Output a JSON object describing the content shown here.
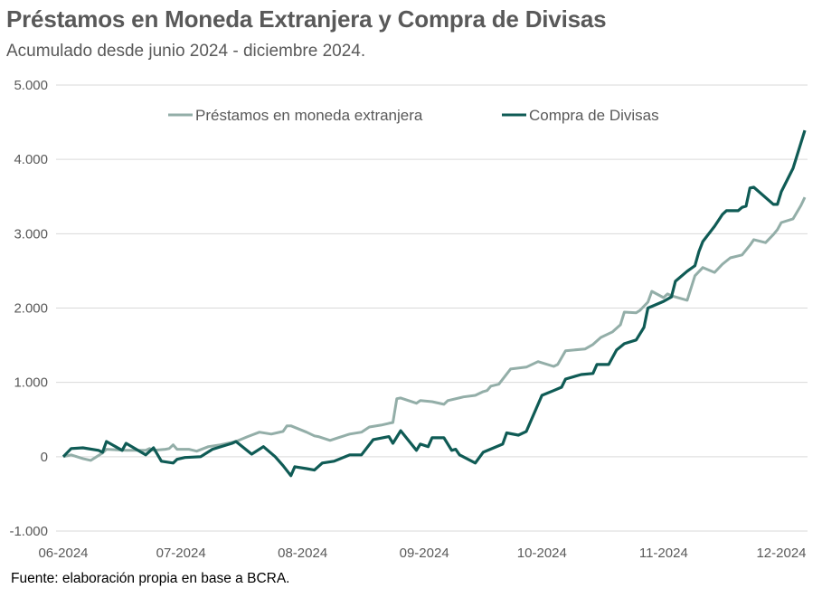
{
  "title": "Préstamos en Moneda Extranjera y Compra de Divisas",
  "subtitle": "Acumulado desde junio 2024 - diciembre 2024.",
  "source": "Fuente: elaboración propia en base a BCRA.",
  "chart_data": {
    "type": "line",
    "title": "Préstamos en Moneda Extranjera y Compra de Divisas",
    "xlabel": "",
    "ylabel": "",
    "ylim": [
      -1000,
      5000
    ],
    "yticks": [
      "-1.000",
      "0",
      "1.000",
      "2.000",
      "3.000",
      "4.000",
      "5.000"
    ],
    "ytick_values": [
      -1000,
      0,
      1000,
      2000,
      3000,
      4000,
      5000
    ],
    "xticks": [
      "06-2024",
      "07-2024",
      "08-2024",
      "09-2024",
      "10-2024",
      "11-2024",
      "12-2024"
    ],
    "xtick_dates": [
      "2024-06-01",
      "2024-07-01",
      "2024-08-01",
      "2024-09-01",
      "2024-10-01",
      "2024-11-01",
      "2024-12-01"
    ],
    "grid": true,
    "legend": "top",
    "series": [
      {
        "name": "Préstamos en moneda extranjera",
        "color": "#93aea8",
        "points": [
          [
            "2024-06-01",
            0
          ],
          [
            "2024-06-03",
            25
          ],
          [
            "2024-06-06",
            -25
          ],
          [
            "2024-06-08",
            -50
          ],
          [
            "2024-06-11",
            50
          ],
          [
            "2024-06-12",
            100
          ],
          [
            "2024-06-17",
            85
          ],
          [
            "2024-06-22",
            85
          ],
          [
            "2024-06-23",
            110
          ],
          [
            "2024-06-24",
            85
          ],
          [
            "2024-06-27",
            100
          ],
          [
            "2024-06-28",
            110
          ],
          [
            "2024-06-29",
            160
          ],
          [
            "2024-06-30",
            100
          ],
          [
            "2024-07-03",
            100
          ],
          [
            "2024-07-05",
            75
          ],
          [
            "2024-07-08",
            135
          ],
          [
            "2024-07-11",
            160
          ],
          [
            "2024-07-15",
            205
          ],
          [
            "2024-07-18",
            270
          ],
          [
            "2024-07-21",
            330
          ],
          [
            "2024-07-24",
            305
          ],
          [
            "2024-07-27",
            340
          ],
          [
            "2024-07-28",
            415
          ],
          [
            "2024-07-29",
            415
          ],
          [
            "2024-08-02",
            330
          ],
          [
            "2024-08-04",
            280
          ],
          [
            "2024-08-05",
            270
          ],
          [
            "2024-08-08",
            220
          ],
          [
            "2024-08-10",
            255
          ],
          [
            "2024-08-13",
            305
          ],
          [
            "2024-08-16",
            330
          ],
          [
            "2024-08-18",
            400
          ],
          [
            "2024-08-21",
            425
          ],
          [
            "2024-08-23",
            450
          ],
          [
            "2024-08-24",
            460
          ],
          [
            "2024-08-25",
            780
          ],
          [
            "2024-08-26",
            790
          ],
          [
            "2024-08-30",
            720
          ],
          [
            "2024-08-31",
            755
          ],
          [
            "2024-09-03",
            740
          ],
          [
            "2024-09-06",
            705
          ],
          [
            "2024-09-07",
            755
          ],
          [
            "2024-09-11",
            805
          ],
          [
            "2024-09-14",
            825
          ],
          [
            "2024-09-16",
            875
          ],
          [
            "2024-09-17",
            890
          ],
          [
            "2024-09-18",
            950
          ],
          [
            "2024-09-20",
            975
          ],
          [
            "2024-09-23",
            1180
          ],
          [
            "2024-09-27",
            1205
          ],
          [
            "2024-09-30",
            1280
          ],
          [
            "2024-10-04",
            1215
          ],
          [
            "2024-10-05",
            1240
          ],
          [
            "2024-10-07",
            1425
          ],
          [
            "2024-10-12",
            1450
          ],
          [
            "2024-10-14",
            1510
          ],
          [
            "2024-10-16",
            1605
          ],
          [
            "2024-10-19",
            1680
          ],
          [
            "2024-10-21",
            1775
          ],
          [
            "2024-10-22",
            1945
          ],
          [
            "2024-10-25",
            1935
          ],
          [
            "2024-10-26",
            1970
          ],
          [
            "2024-10-28",
            2080
          ],
          [
            "2024-10-29",
            2225
          ],
          [
            "2024-11-01",
            2140
          ],
          [
            "2024-11-02",
            2190
          ],
          [
            "2024-11-03",
            2165
          ],
          [
            "2024-11-07",
            2105
          ],
          [
            "2024-11-09",
            2435
          ],
          [
            "2024-11-11",
            2545
          ],
          [
            "2024-11-14",
            2480
          ],
          [
            "2024-11-16",
            2590
          ],
          [
            "2024-11-18",
            2675
          ],
          [
            "2024-11-21",
            2715
          ],
          [
            "2024-11-23",
            2845
          ],
          [
            "2024-11-24",
            2920
          ],
          [
            "2024-11-27",
            2880
          ],
          [
            "2024-11-29",
            2990
          ],
          [
            "2024-11-30",
            3055
          ],
          [
            "2024-12-01",
            3150
          ],
          [
            "2024-12-04",
            3200
          ],
          [
            "2024-12-06",
            3380
          ],
          [
            "2024-12-07",
            3490
          ]
        ]
      },
      {
        "name": "Compra de Divisas",
        "color": "#0f5b55",
        "points": [
          [
            "2024-06-01",
            0
          ],
          [
            "2024-06-03",
            110
          ],
          [
            "2024-06-06",
            120
          ],
          [
            "2024-06-10",
            85
          ],
          [
            "2024-06-11",
            60
          ],
          [
            "2024-06-12",
            205
          ],
          [
            "2024-06-16",
            85
          ],
          [
            "2024-06-17",
            180
          ],
          [
            "2024-06-22",
            25
          ],
          [
            "2024-06-24",
            120
          ],
          [
            "2024-06-26",
            -60
          ],
          [
            "2024-06-29",
            -85
          ],
          [
            "2024-06-30",
            -35
          ],
          [
            "2024-07-02",
            -10
          ],
          [
            "2024-07-06",
            0
          ],
          [
            "2024-07-09",
            100
          ],
          [
            "2024-07-14",
            180
          ],
          [
            "2024-07-15",
            205
          ],
          [
            "2024-07-19",
            35
          ],
          [
            "2024-07-22",
            135
          ],
          [
            "2024-07-25",
            0
          ],
          [
            "2024-07-27",
            -120
          ],
          [
            "2024-07-29",
            -255
          ],
          [
            "2024-07-30",
            -135
          ],
          [
            "2024-08-02",
            -160
          ],
          [
            "2024-08-04",
            -180
          ],
          [
            "2024-08-06",
            -85
          ],
          [
            "2024-08-09",
            -60
          ],
          [
            "2024-08-13",
            25
          ],
          [
            "2024-08-16",
            25
          ],
          [
            "2024-08-19",
            230
          ],
          [
            "2024-08-23",
            270
          ],
          [
            "2024-08-24",
            180
          ],
          [
            "2024-08-26",
            350
          ],
          [
            "2024-08-30",
            85
          ],
          [
            "2024-08-31",
            170
          ],
          [
            "2024-09-02",
            135
          ],
          [
            "2024-09-03",
            255
          ],
          [
            "2024-09-06",
            255
          ],
          [
            "2024-09-08",
            85
          ],
          [
            "2024-09-09",
            100
          ],
          [
            "2024-09-10",
            25
          ],
          [
            "2024-09-14",
            -85
          ],
          [
            "2024-09-16",
            60
          ],
          [
            "2024-09-21",
            170
          ],
          [
            "2024-09-22",
            320
          ],
          [
            "2024-09-25",
            290
          ],
          [
            "2024-09-27",
            340
          ],
          [
            "2024-10-01",
            825
          ],
          [
            "2024-10-04",
            890
          ],
          [
            "2024-10-06",
            935
          ],
          [
            "2024-10-07",
            1045
          ],
          [
            "2024-10-11",
            1105
          ],
          [
            "2024-10-14",
            1120
          ],
          [
            "2024-10-15",
            1240
          ],
          [
            "2024-10-18",
            1240
          ],
          [
            "2024-10-20",
            1435
          ],
          [
            "2024-10-22",
            1520
          ],
          [
            "2024-10-25",
            1570
          ],
          [
            "2024-10-27",
            1740
          ],
          [
            "2024-10-28",
            2000
          ],
          [
            "2024-11-01",
            2090
          ],
          [
            "2024-11-03",
            2150
          ],
          [
            "2024-11-04",
            2360
          ],
          [
            "2024-11-07",
            2495
          ],
          [
            "2024-11-09",
            2570
          ],
          [
            "2024-11-10",
            2760
          ],
          [
            "2024-11-11",
            2895
          ],
          [
            "2024-11-14",
            3100
          ],
          [
            "2024-11-16",
            3260
          ],
          [
            "2024-11-17",
            3310
          ],
          [
            "2024-11-20",
            3310
          ],
          [
            "2024-11-21",
            3355
          ],
          [
            "2024-11-22",
            3370
          ],
          [
            "2024-11-23",
            3615
          ],
          [
            "2024-11-24",
            3625
          ],
          [
            "2024-11-29",
            3395
          ],
          [
            "2024-11-30",
            3395
          ],
          [
            "2024-12-01",
            3565
          ],
          [
            "2024-12-04",
            3880
          ],
          [
            "2024-12-07",
            4390
          ]
        ]
      }
    ]
  }
}
